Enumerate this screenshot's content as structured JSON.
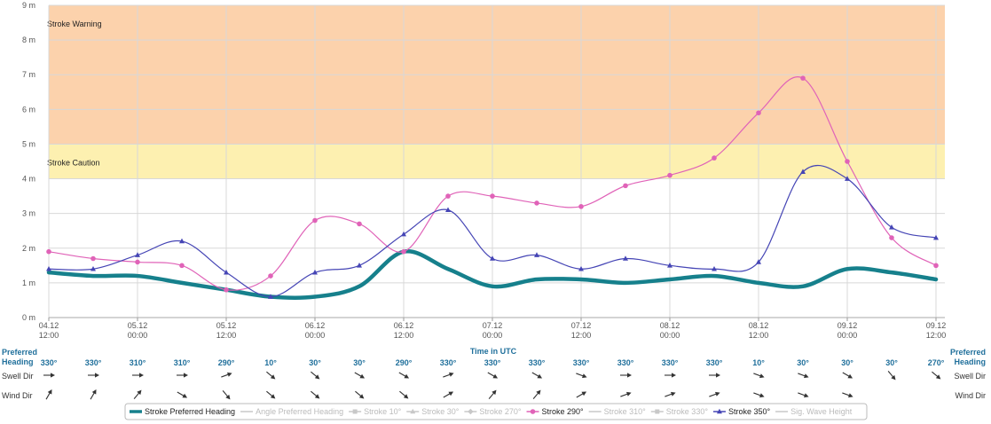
{
  "chart_data": {
    "type": "line",
    "title": "",
    "xlabel": "Time in UTC",
    "ylabel": "",
    "ylim": [
      0,
      9
    ],
    "y_ticks": [
      "0 m",
      "1 m",
      "2 m",
      "3 m",
      "4 m",
      "5 m",
      "6 m",
      "7 m",
      "8 m",
      "9 m"
    ],
    "x_ticks": [
      {
        "date": "04.12",
        "time": "12:00"
      },
      {
        "date": "05.12",
        "time": "00:00"
      },
      {
        "date": "05.12",
        "time": "12:00"
      },
      {
        "date": "06.12",
        "time": "00:00"
      },
      {
        "date": "06.12",
        "time": "12:00"
      },
      {
        "date": "07.12",
        "time": "00:00"
      },
      {
        "date": "07.12",
        "time": "12:00"
      },
      {
        "date": "08.12",
        "time": "00:00"
      },
      {
        "date": "08.12",
        "time": "12:00"
      },
      {
        "date": "09.12",
        "time": "00:00"
      },
      {
        "date": "09.12",
        "time": "12:00"
      }
    ],
    "x_hours": [
      0,
      6,
      12,
      18,
      24,
      30,
      36,
      42,
      48,
      54,
      60,
      66,
      72,
      78,
      84,
      90,
      96,
      102,
      108,
      114,
      120
    ],
    "bands": [
      {
        "label": "Stroke Caution",
        "from": 4,
        "to": 5,
        "color": "#fdf0b0"
      },
      {
        "label": "Stroke Warning",
        "from": 5,
        "to": 9,
        "color": "#fcd2ac"
      }
    ],
    "series": [
      {
        "name": "Stroke Preferred Heading",
        "color": "#16808c",
        "values": [
          1.3,
          1.2,
          1.2,
          1.0,
          0.8,
          0.6,
          0.6,
          0.9,
          1.9,
          1.4,
          0.9,
          1.1,
          1.1,
          1.0,
          1.1,
          1.2,
          1.0,
          0.9,
          1.4,
          1.3,
          1.1
        ]
      },
      {
        "name": "Stroke 290°",
        "color": "#e063b8",
        "values": [
          1.9,
          1.7,
          1.6,
          1.5,
          0.8,
          1.2,
          2.8,
          2.7,
          1.9,
          3.5,
          3.5,
          3.3,
          3.2,
          3.8,
          4.1,
          4.6,
          5.9,
          6.9,
          4.5,
          2.3,
          1.5
        ]
      },
      {
        "name": "Stroke 350°",
        "color": "#4545b5",
        "values": [
          1.4,
          1.4,
          1.8,
          2.2,
          1.3,
          0.6,
          1.3,
          1.5,
          2.4,
          3.1,
          1.7,
          1.8,
          1.4,
          1.7,
          1.5,
          1.4,
          1.6,
          4.2,
          4.0,
          2.6,
          2.3
        ]
      }
    ]
  },
  "preferred_heading": {
    "label_left_1": "Preferred",
    "label_left_2": "Heading",
    "label_right_1": "Preferred",
    "label_right_2": "Heading",
    "values": [
      "330°",
      "330°",
      "310°",
      "310°",
      "290°",
      "10°",
      "30°",
      "30°",
      "290°",
      "330°",
      "330°",
      "330°",
      "330°",
      "330°",
      "330°",
      "330°",
      "10°",
      "30°",
      "30°",
      "30°",
      "270°"
    ]
  },
  "swell_dir": {
    "label": "Swell Dir",
    "angles": [
      90,
      90,
      90,
      90,
      70,
      130,
      130,
      120,
      120,
      70,
      120,
      120,
      110,
      90,
      90,
      90,
      110,
      110,
      120,
      140,
      130
    ]
  },
  "wind_dir": {
    "label": "Wind Dir",
    "angles": [
      30,
      30,
      40,
      120,
      140,
      130,
      130,
      130,
      130,
      60,
      40,
      40,
      60,
      70,
      70,
      70,
      110,
      110,
      110,
      null,
      null
    ]
  },
  "legend": [
    {
      "label": "Stroke Preferred Heading",
      "active": true,
      "color": "#16808c",
      "marker": "thick-line"
    },
    {
      "label": "Angle Preferred Heading",
      "active": false,
      "color": "#c8c8c8",
      "marker": "line"
    },
    {
      "label": "Stroke 10°",
      "active": false,
      "color": "#c8c8c8",
      "marker": "square"
    },
    {
      "label": "Stroke 30°",
      "active": false,
      "color": "#c8c8c8",
      "marker": "triangle"
    },
    {
      "label": "Stroke 270°",
      "active": false,
      "color": "#c8c8c8",
      "marker": "diamond"
    },
    {
      "label": "Stroke 290°",
      "active": true,
      "color": "#e063b8",
      "marker": "circle"
    },
    {
      "label": "Stroke 310°",
      "active": false,
      "color": "#c8c8c8",
      "marker": "line"
    },
    {
      "label": "Stroke 330°",
      "active": false,
      "color": "#c8c8c8",
      "marker": "square"
    },
    {
      "label": "Stroke 350°",
      "active": true,
      "color": "#4545b5",
      "marker": "triangle"
    },
    {
      "label": "Sig. Wave Height",
      "active": false,
      "color": "#c8c8c8",
      "marker": "line"
    }
  ]
}
